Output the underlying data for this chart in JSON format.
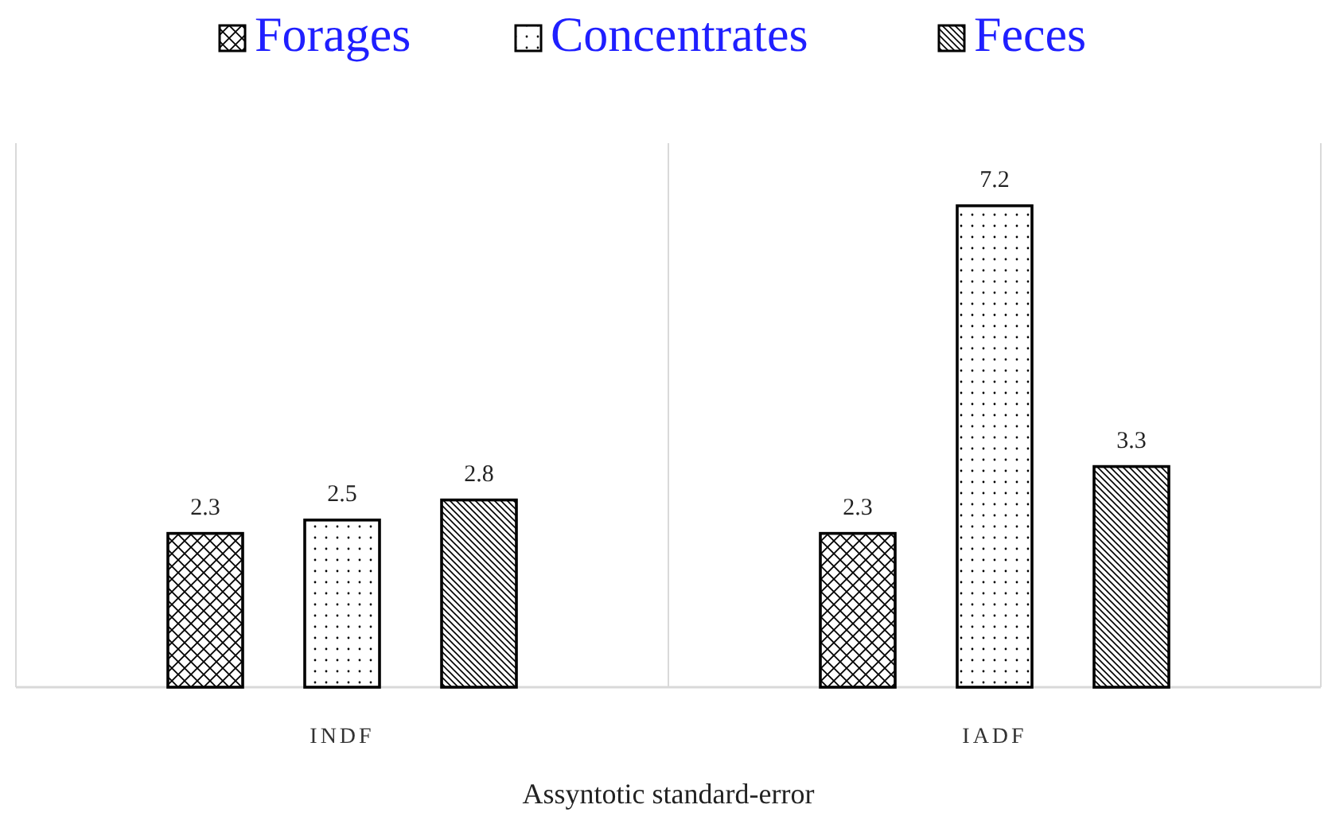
{
  "chart_data": {
    "type": "bar",
    "xlabel": "Assyntotic standard-error",
    "categories": [
      "INDF",
      "IADF"
    ],
    "series": [
      {
        "name": "Forages",
        "color": "#000000",
        "values": [
          2.3,
          2.3
        ]
      },
      {
        "name": "Concentrates",
        "color": "#000000",
        "values": [
          2.5,
          7.2
        ]
      },
      {
        "name": "Feces",
        "color": "#000000",
        "values": [
          2.8,
          3.3
        ]
      }
    ],
    "data_labels": true,
    "legend": "top",
    "grid": "x"
  }
}
